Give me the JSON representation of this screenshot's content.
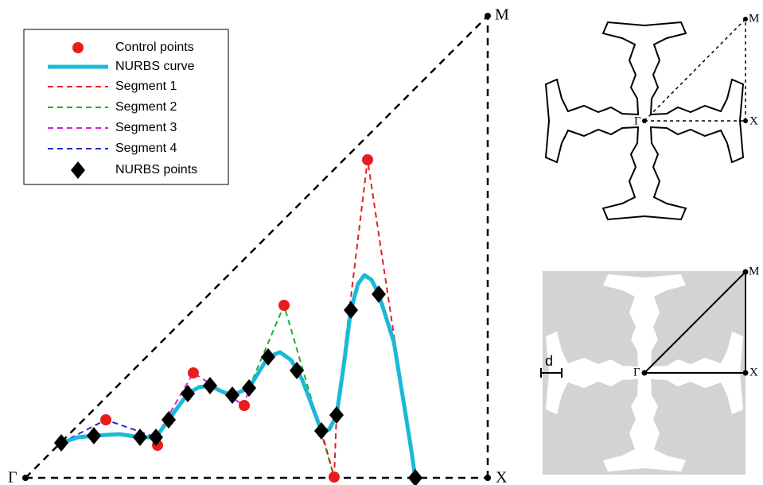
{
  "legend": [
    "Control points",
    "NURBS curve",
    "Segment 1",
    "Segment 2",
    "Segment 3",
    "Segment 4",
    "NURBS points"
  ],
  "main": {
    "gamma": "Γ",
    "x": "X",
    "m": "M"
  },
  "top_inset": {
    "gamma": "Γ",
    "x": "X",
    "m": "M"
  },
  "bottom_inset": {
    "gamma": "Γ",
    "x": "X",
    "m": "M",
    "d": "d"
  }
}
